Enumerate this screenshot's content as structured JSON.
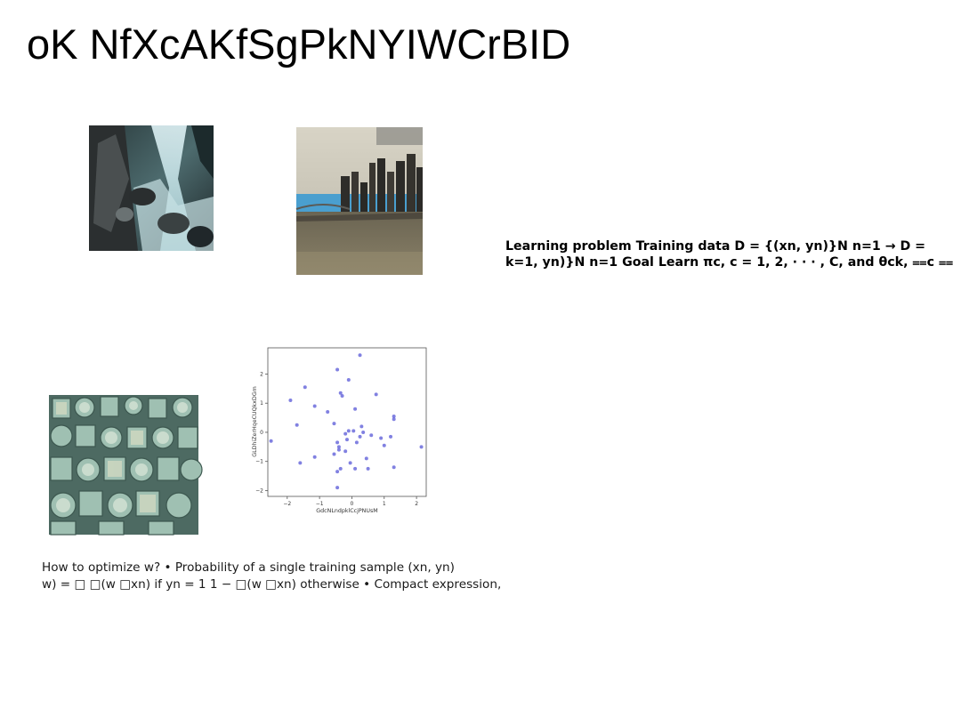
{
  "slide": {
    "title": "oK NfXcAKfSgPkNYIWCrBID"
  },
  "text_blocks": {
    "bold_lines": [
      "Learning problem Training data D = {(xn, yn)}N n=1 → D =",
      "k=1, yn)}N n=1 Goal Learn πc, c = 1, 2, · · · , C, and θck, ⩵c ⩵"
    ],
    "plain_lines": [
      "How to optimize w? • Probability of a single training sample (xn, yn)",
      "w) = □ □(w □xn) if yn = 1 1 − □(w □xn) otherwise • Compact expression,"
    ]
  },
  "images": [
    {
      "name": "waterfall-photo"
    },
    {
      "name": "city-skyline-photo"
    },
    {
      "name": "geometric-shapes-photo"
    }
  ],
  "chart_data": {
    "type": "scatter",
    "xlabel": "GdcNLndpklCcjPNUsM",
    "ylabel": "GLDhiZerHqeCUQkxDGm",
    "xlim": [
      -2.6,
      2.3
    ],
    "ylim": [
      -2.2,
      2.9
    ],
    "xticks": [
      -2,
      -1,
      0,
      1,
      2
    ],
    "yticks": [
      -2,
      -1,
      0,
      1,
      2
    ],
    "grid": false,
    "point_color": "#6b6bdc",
    "points": [
      {
        "x": 0.25,
        "y": 2.65
      },
      {
        "x": -0.45,
        "y": 2.15
      },
      {
        "x": -0.1,
        "y": 1.8
      },
      {
        "x": -1.45,
        "y": 1.55
      },
      {
        "x": -0.35,
        "y": 1.35
      },
      {
        "x": -0.3,
        "y": 1.25
      },
      {
        "x": -1.9,
        "y": 1.1
      },
      {
        "x": 0.75,
        "y": 1.3
      },
      {
        "x": -1.15,
        "y": 0.9
      },
      {
        "x": 0.1,
        "y": 0.8
      },
      {
        "x": -0.75,
        "y": 0.7
      },
      {
        "x": 1.3,
        "y": 0.55
      },
      {
        "x": 1.3,
        "y": 0.45
      },
      {
        "x": -1.7,
        "y": 0.25
      },
      {
        "x": -0.55,
        "y": 0.3
      },
      {
        "x": 0.3,
        "y": 0.2
      },
      {
        "x": 0.05,
        "y": 0.05
      },
      {
        "x": -0.1,
        "y": 0.05
      },
      {
        "x": 0.35,
        "y": 0.0
      },
      {
        "x": -0.2,
        "y": -0.05
      },
      {
        "x": 0.6,
        "y": -0.1
      },
      {
        "x": 0.25,
        "y": -0.15
      },
      {
        "x": 0.9,
        "y": -0.2
      },
      {
        "x": 1.2,
        "y": -0.15
      },
      {
        "x": -0.15,
        "y": -0.25
      },
      {
        "x": -0.45,
        "y": -0.35
      },
      {
        "x": 0.15,
        "y": -0.35
      },
      {
        "x": -2.5,
        "y": -0.3
      },
      {
        "x": 1.0,
        "y": -0.45
      },
      {
        "x": 2.15,
        "y": -0.5
      },
      {
        "x": -0.4,
        "y": -0.5
      },
      {
        "x": -0.4,
        "y": -0.6
      },
      {
        "x": -0.2,
        "y": -0.65
      },
      {
        "x": -0.55,
        "y": -0.75
      },
      {
        "x": -1.15,
        "y": -0.85
      },
      {
        "x": 0.45,
        "y": -0.9
      },
      {
        "x": -1.6,
        "y": -1.05
      },
      {
        "x": -0.05,
        "y": -1.05
      },
      {
        "x": -0.35,
        "y": -1.25
      },
      {
        "x": 0.1,
        "y": -1.25
      },
      {
        "x": 0.5,
        "y": -1.25
      },
      {
        "x": 1.3,
        "y": -1.2
      },
      {
        "x": -0.45,
        "y": -1.35
      },
      {
        "x": -0.45,
        "y": -1.9
      }
    ]
  }
}
